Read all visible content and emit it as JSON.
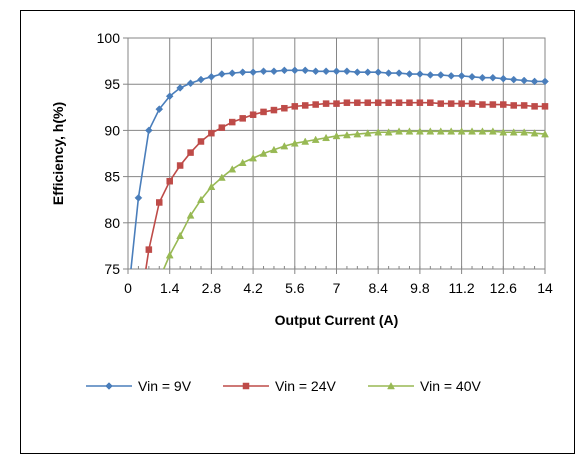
{
  "chart_data": {
    "type": "line",
    "title": "",
    "xlabel": "Output Current (A)",
    "ylabel": "Efficiency, h(%)",
    "xlim": [
      0,
      14
    ],
    "ylim": [
      75,
      100
    ],
    "x_ticks": [
      "0",
      "1.4",
      "2.8",
      "4.2",
      "5.6",
      "7",
      "8.4",
      "9.8",
      "11.2",
      "12.6",
      "14"
    ],
    "y_ticks": [
      "75",
      "80",
      "85",
      "90",
      "95",
      "100"
    ],
    "grid": true,
    "legend_position": "bottom",
    "series": [
      {
        "name": "Vin = 9V",
        "color": "#4a7ebb",
        "marker": "diamond",
        "x": [
          0.1,
          0.35,
          0.7,
          1.05,
          1.4,
          1.75,
          2.1,
          2.45,
          2.8,
          3.15,
          3.5,
          3.85,
          4.2,
          4.55,
          4.9,
          5.25,
          5.6,
          5.95,
          6.3,
          6.65,
          7.0,
          7.35,
          7.7,
          8.05,
          8.4,
          8.75,
          9.1,
          9.45,
          9.8,
          10.15,
          10.5,
          10.85,
          11.2,
          11.55,
          11.9,
          12.25,
          12.6,
          12.95,
          13.3,
          13.65,
          14.0
        ],
        "y": [
          75.0,
          82.7,
          90.0,
          92.3,
          93.7,
          94.6,
          95.1,
          95.5,
          95.8,
          96.1,
          96.2,
          96.3,
          96.3,
          96.4,
          96.4,
          96.5,
          96.5,
          96.5,
          96.4,
          96.4,
          96.4,
          96.4,
          96.3,
          96.3,
          96.3,
          96.2,
          96.2,
          96.1,
          96.1,
          96.0,
          96.0,
          95.9,
          95.9,
          95.8,
          95.7,
          95.7,
          95.6,
          95.5,
          95.4,
          95.3,
          95.3
        ]
      },
      {
        "name": "Vin = 24V",
        "color": "#be4b48",
        "marker": "square",
        "x": [
          0.6,
          0.7,
          1.05,
          1.4,
          1.75,
          2.1,
          2.45,
          2.8,
          3.15,
          3.5,
          3.85,
          4.2,
          4.55,
          4.9,
          5.25,
          5.6,
          5.95,
          6.3,
          6.65,
          7.0,
          7.35,
          7.7,
          8.05,
          8.4,
          8.75,
          9.1,
          9.45,
          9.8,
          10.15,
          10.5,
          10.85,
          11.2,
          11.55,
          11.9,
          12.25,
          12.6,
          12.95,
          13.3,
          13.65,
          14.0
        ],
        "y": [
          75.0,
          77.1,
          82.2,
          84.5,
          86.2,
          87.6,
          88.8,
          89.7,
          90.3,
          90.9,
          91.3,
          91.7,
          92.0,
          92.2,
          92.4,
          92.6,
          92.7,
          92.8,
          92.9,
          92.9,
          93.0,
          93.0,
          93.0,
          93.0,
          93.0,
          93.0,
          93.0,
          93.0,
          93.0,
          92.9,
          92.9,
          92.9,
          92.9,
          92.8,
          92.8,
          92.8,
          92.7,
          92.7,
          92.6,
          92.6
        ]
      },
      {
        "name": "Vin = 40V",
        "color": "#98b954",
        "marker": "triangle",
        "x": [
          1.2,
          1.4,
          1.75,
          2.1,
          2.45,
          2.8,
          3.15,
          3.5,
          3.85,
          4.2,
          4.55,
          4.9,
          5.25,
          5.6,
          5.95,
          6.3,
          6.65,
          7.0,
          7.35,
          7.7,
          8.05,
          8.4,
          8.75,
          9.1,
          9.45,
          9.8,
          10.15,
          10.5,
          10.85,
          11.2,
          11.55,
          11.9,
          12.25,
          12.6,
          12.95,
          13.3,
          13.65,
          14.0
        ],
        "y": [
          75.0,
          76.5,
          78.6,
          80.8,
          82.5,
          83.9,
          84.9,
          85.8,
          86.5,
          87.0,
          87.5,
          87.9,
          88.3,
          88.6,
          88.8,
          89.0,
          89.2,
          89.4,
          89.5,
          89.6,
          89.7,
          89.8,
          89.8,
          89.9,
          89.9,
          89.9,
          89.9,
          89.9,
          89.9,
          89.9,
          89.9,
          89.9,
          89.9,
          89.8,
          89.8,
          89.8,
          89.7,
          89.6
        ]
      }
    ]
  }
}
